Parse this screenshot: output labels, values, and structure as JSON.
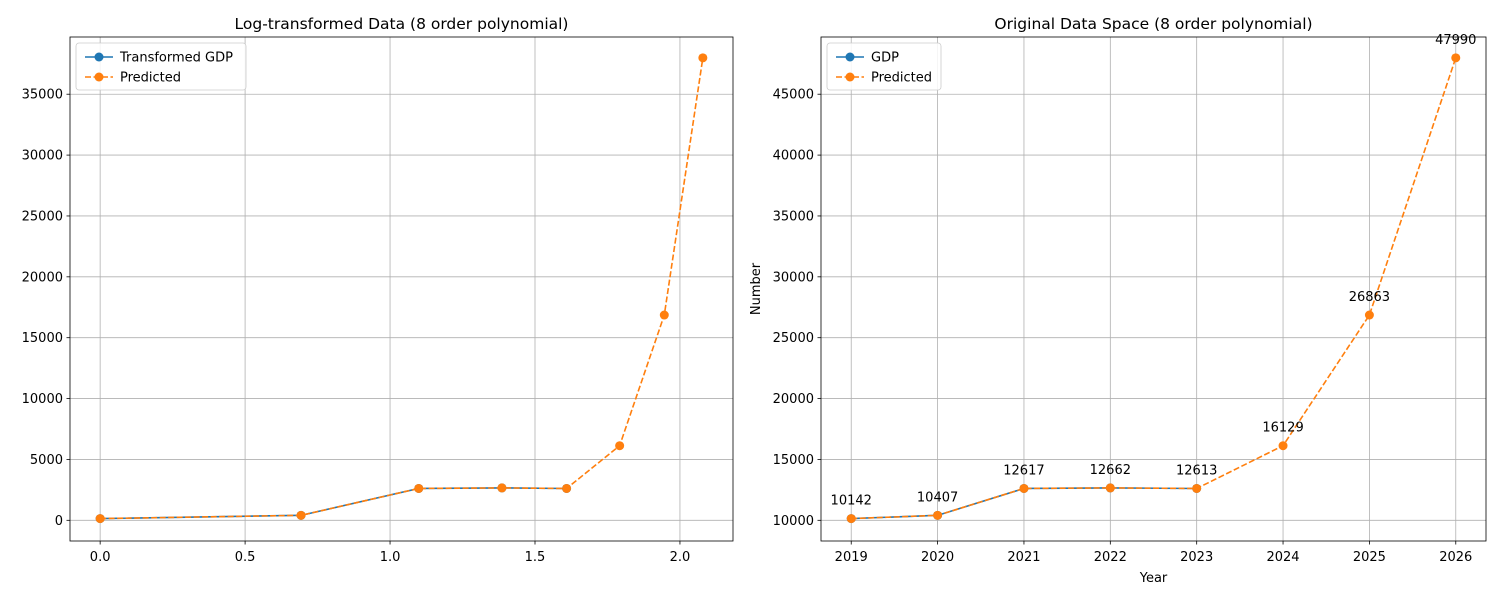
{
  "chart_data": [
    {
      "type": "line",
      "title": "Log-transformed Data (8 order polynomial)",
      "xlabel": "",
      "ylabel": "",
      "xlim": [
        -0.104,
        2.183
      ],
      "ylim": [
        -1700,
        39700
      ],
      "xticks": [
        "0.0",
        "0.5",
        "1.0",
        "1.5",
        "2.0"
      ],
      "xtick_values": [
        0.0,
        0.5,
        1.0,
        1.5,
        2.0
      ],
      "yticks": [
        "0",
        "5000",
        "10000",
        "15000",
        "20000",
        "25000",
        "30000",
        "35000"
      ],
      "ytick_values": [
        0,
        5000,
        10000,
        15000,
        20000,
        25000,
        30000,
        35000
      ],
      "grid": true,
      "legend_position": "top-left",
      "series": [
        {
          "name": "Transformed GDP",
          "color": "#1f77b4",
          "style": "solid",
          "marker": "circle",
          "x": [
            0.0,
            0.693,
            1.099,
            1.386,
            1.609
          ],
          "y": [
            142,
            407,
            2617,
            2662,
            2613
          ]
        },
        {
          "name": "Predicted",
          "color": "#ff7f0e",
          "style": "dashed",
          "marker": "circle",
          "x": [
            0.0,
            0.693,
            1.099,
            1.386,
            1.609,
            1.792,
            1.946,
            2.079
          ],
          "y": [
            142,
            407,
            2617,
            2662,
            2613,
            6129,
            16863,
            37990
          ]
        }
      ],
      "annotations": []
    },
    {
      "type": "line",
      "title": "Original Data Space (8 order polynomial)",
      "xlabel": "Year",
      "ylabel": "Number",
      "xlim": [
        2018.65,
        2026.35
      ],
      "ylim": [
        8300,
        49700
      ],
      "xticks": [
        "2019",
        "2020",
        "2021",
        "2022",
        "2023",
        "2024",
        "2025",
        "2026"
      ],
      "xtick_values": [
        2019,
        2020,
        2021,
        2022,
        2023,
        2024,
        2025,
        2026
      ],
      "yticks": [
        "10000",
        "15000",
        "20000",
        "25000",
        "30000",
        "35000",
        "40000",
        "45000"
      ],
      "ytick_values": [
        10000,
        15000,
        20000,
        25000,
        30000,
        35000,
        40000,
        45000
      ],
      "grid": true,
      "legend_position": "top-left",
      "series": [
        {
          "name": "GDP",
          "color": "#1f77b4",
          "style": "solid",
          "marker": "circle",
          "x": [
            2019,
            2020,
            2021,
            2022,
            2023
          ],
          "y": [
            10142,
            10407,
            12617,
            12662,
            12613
          ]
        },
        {
          "name": "Predicted",
          "color": "#ff7f0e",
          "style": "dashed",
          "marker": "circle",
          "x": [
            2019,
            2020,
            2021,
            2022,
            2023,
            2024,
            2025,
            2026
          ],
          "y": [
            10142,
            10407,
            12617,
            12662,
            12613,
            16129,
            26863,
            47990
          ]
        }
      ],
      "annotations": [
        {
          "x": 2019,
          "y": 10142,
          "text": "10142"
        },
        {
          "x": 2020,
          "y": 10407,
          "text": "10407"
        },
        {
          "x": 2021,
          "y": 12617,
          "text": "12617"
        },
        {
          "x": 2022,
          "y": 12662,
          "text": "12662"
        },
        {
          "x": 2023,
          "y": 12613,
          "text": "12613"
        },
        {
          "x": 2024,
          "y": 16129,
          "text": "16129"
        },
        {
          "x": 2025,
          "y": 26863,
          "text": "26863"
        },
        {
          "x": 2026,
          "y": 47990,
          "text": "47990"
        }
      ]
    }
  ]
}
